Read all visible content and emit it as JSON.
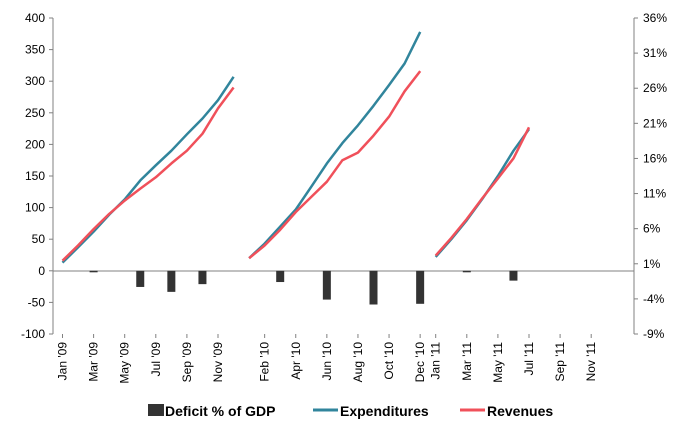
{
  "chart_data": {
    "type": "bar+line",
    "title": "",
    "xlabel": "",
    "ylabel": "",
    "ylim_left": [
      -100,
      400
    ],
    "ylim_right": [
      -9,
      36
    ],
    "y_left_ticks": [
      "400",
      "350",
      "300",
      "250",
      "200",
      "150",
      "100",
      "50",
      "0",
      "-50",
      "-100"
    ],
    "y_right_ticks": [
      "36%",
      "31%",
      "26%",
      "21%",
      "16%",
      "11%",
      "6%",
      "1%",
      "-4%",
      "-9%"
    ],
    "x_tick_labels": [
      "Jan '09",
      "Mar '09",
      "May '09",
      "Jul '09",
      "Sep '09",
      "Nov '09",
      "Feb '10",
      "Apr '10",
      "Jun '10",
      "Aug '10",
      "Oct '10",
      "Dec '10",
      "Jan '11",
      "Mar '11",
      "May '11",
      "Jul '11",
      "Sep '11",
      "Nov '11"
    ],
    "legend_position": "bottom",
    "legend": [
      "Deficit % of GDP",
      "Expenditures",
      "Revenues"
    ],
    "series": [
      {
        "name": "Deficit % of GDP",
        "type": "bar",
        "axis": "right",
        "color": "#333333",
        "points": [
          {
            "x": "Mar '09",
            "y": 0.0
          },
          {
            "x": "Jun '09",
            "y": -2.3
          },
          {
            "x": "Aug '09",
            "y": -3.0
          },
          {
            "x": "Oct '09",
            "y": -1.9
          },
          {
            "x": "Mar '10",
            "y": -1.6
          },
          {
            "x": "Jun '10",
            "y": -4.1
          },
          {
            "x": "Sep '10",
            "y": -4.8
          },
          {
            "x": "Dec '10",
            "y": -4.7
          },
          {
            "x": "Mar '11",
            "y": -0.1
          },
          {
            "x": "Jun '11",
            "y": -1.4
          }
        ]
      },
      {
        "name": "Expenditures",
        "type": "line",
        "axis": "left",
        "color": "#31859c",
        "segments": [
          {
            "x": [
              "Jan '09",
              "Feb '09",
              "Mar '09",
              "Apr '09",
              "May '09",
              "Jun '09",
              "Jul '09",
              "Aug '09",
              "Sep '09",
              "Oct '09",
              "Nov '09",
              "Dec '09"
            ],
            "y": [
              13,
              37,
              62,
              89,
              113,
              143,
              167,
              190,
              216,
              241,
              270,
              307
            ]
          },
          {
            "x": [
              "Jan '10",
              "Feb '10",
              "Mar '10",
              "Apr '10",
              "May '10",
              "Jun '10",
              "Jul '10",
              "Aug '10",
              "Sep '10",
              "Oct '10",
              "Nov '10",
              "Dec '10"
            ],
            "y": [
              20,
              43,
              70,
              97,
              133,
              170,
              202,
              230,
              261,
              294,
              328,
              378
            ]
          },
          {
            "x": [
              "Jan '11",
              "Feb '11",
              "Mar '11",
              "Apr '11",
              "May '11",
              "Jun '11",
              "Jul '11"
            ],
            "y": [
              22,
              50,
              80,
              114,
              150,
              190,
              224
            ]
          }
        ]
      },
      {
        "name": "Revenues",
        "type": "line",
        "axis": "left",
        "color": "#f0505a",
        "segments": [
          {
            "x": [
              "Jan '09",
              "Feb '09",
              "Mar '09",
              "Apr '09",
              "May '09",
              "Jun '09",
              "Jul '09",
              "Aug '09",
              "Sep '09",
              "Oct '09",
              "Nov '09",
              "Dec '09"
            ],
            "y": [
              16,
              40,
              66,
              90,
              111,
              130,
              148,
              170,
              190,
              217,
              257,
              290
            ]
          },
          {
            "x": [
              "Jan '10",
              "Feb '10",
              "Mar '10",
              "Apr '10",
              "May '10",
              "Jun '10",
              "Jul '10",
              "Aug '10",
              "Sep '10",
              "Oct '10",
              "Nov '10",
              "Dec '10"
            ],
            "y": [
              20,
              40,
              65,
              93,
              117,
              141,
              175,
              187,
              214,
              244,
              284,
              316
            ]
          },
          {
            "x": [
              "Jan '11",
              "Feb '11",
              "Mar '11",
              "Apr '11",
              "May '11",
              "Jun '11",
              "Jul '11"
            ],
            "y": [
              24,
              52,
              82,
              115,
              146,
              178,
              227
            ]
          }
        ]
      }
    ]
  }
}
